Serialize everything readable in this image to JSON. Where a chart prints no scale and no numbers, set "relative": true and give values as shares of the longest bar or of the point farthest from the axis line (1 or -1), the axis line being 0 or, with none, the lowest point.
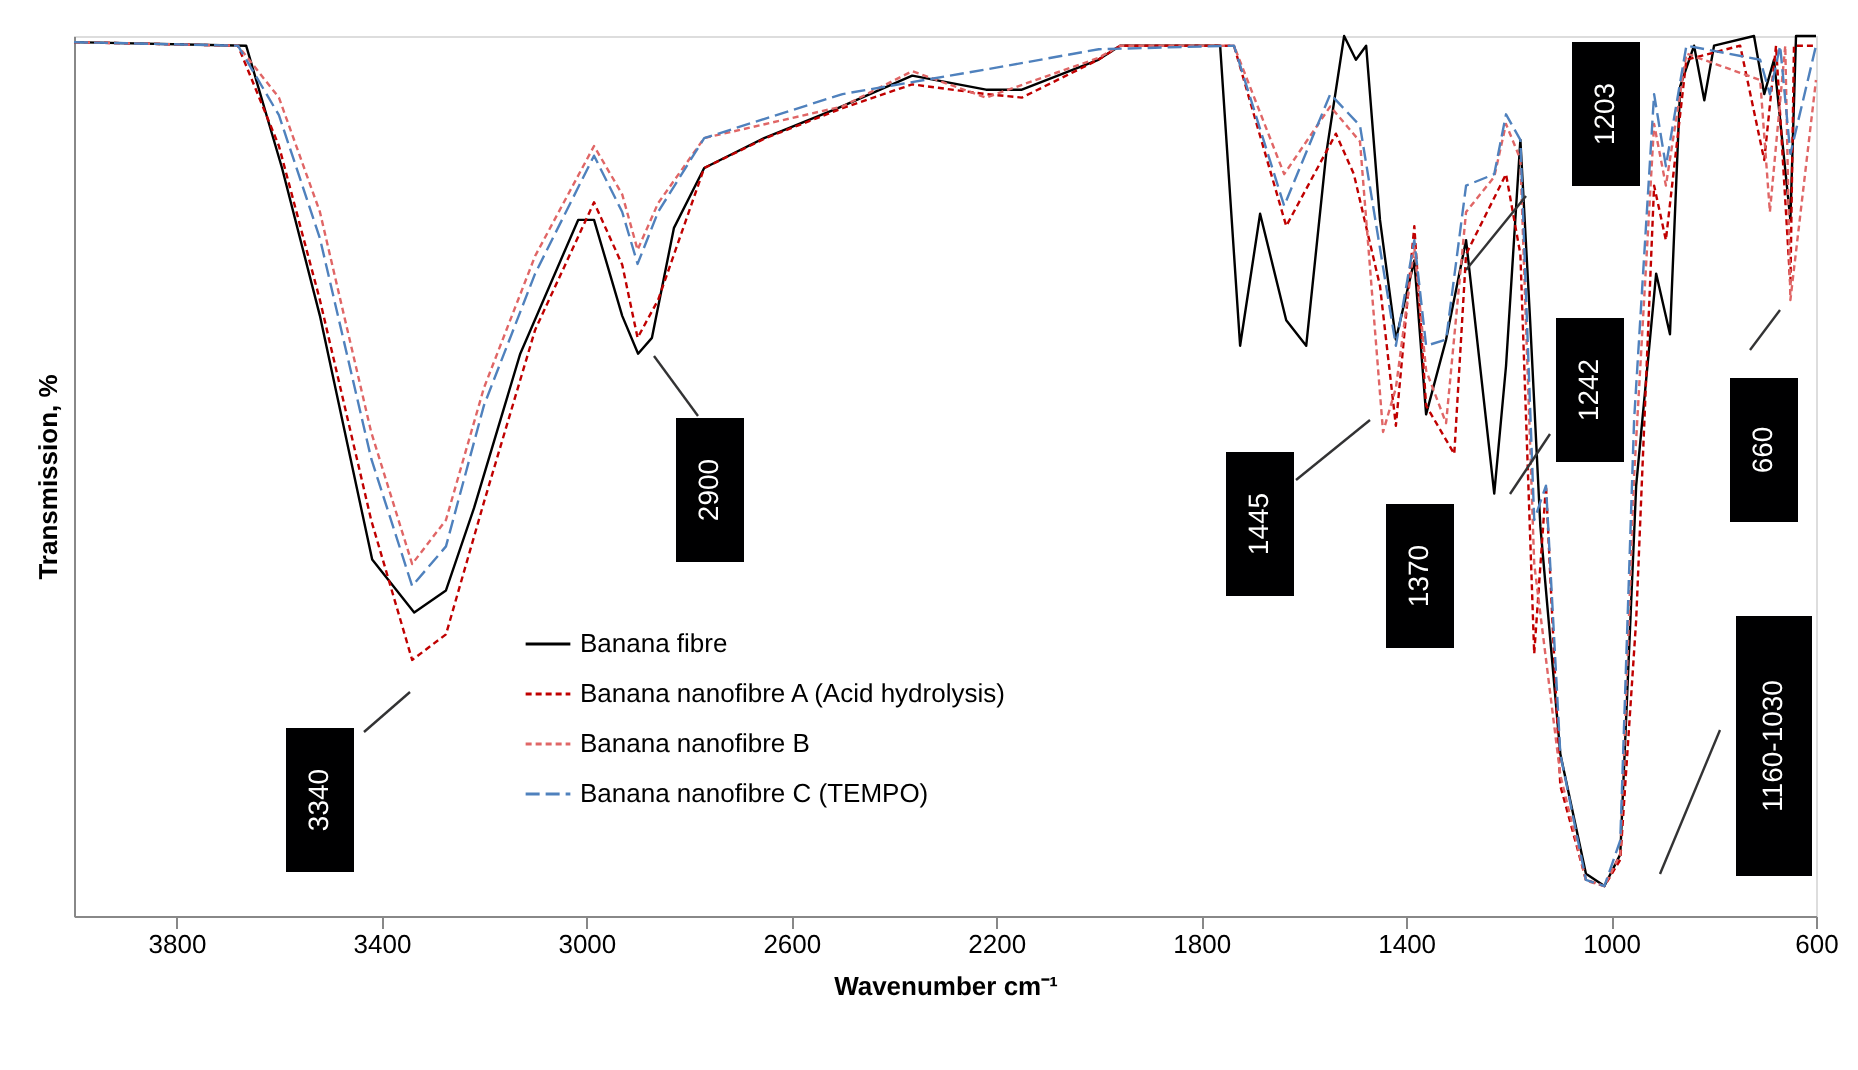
{
  "chart_data": {
    "type": "line",
    "relative": true,
    "xlabel": "Wavenumber cm⁻¹",
    "ylabel": "Transmission, %",
    "xlim": [
      4000,
      600
    ],
    "xticks": [
      3800,
      3400,
      3000,
      2600,
      2200,
      1800,
      1400,
      1000,
      600
    ],
    "legend": "bottom",
    "grid": false,
    "marker": "none",
    "series": [
      {
        "name": "Banana fibre",
        "color": "#000000",
        "line_style": "solid",
        "x": [
          4000,
          3664,
          3594,
          3520,
          3418,
          3336,
          3274,
          3219,
          3129,
          3016,
          2985,
          2930,
          2899,
          2872,
          2829,
          2770,
          2653,
          2509,
          2364,
          2220,
          2150,
          2001,
          1958,
          1771,
          1763,
          1724,
          1685,
          1634,
          1595,
          1556,
          1521,
          1498,
          1478,
          1451,
          1420,
          1384,
          1361,
          1322,
          1283,
          1228,
          1205,
          1177,
          1158,
          1138,
          1099,
          1049,
          1013,
          982,
          951,
          912,
          885,
          865,
          838,
          818,
          799,
          721,
          701,
          682,
          650,
          639,
          600
        ],
        "values": [
          0.993,
          0.989,
          0.85,
          0.682,
          0.405,
          0.345,
          0.37,
          0.464,
          0.639,
          0.791,
          0.791,
          0.682,
          0.639,
          0.657,
          0.782,
          0.85,
          0.884,
          0.918,
          0.955,
          0.939,
          0.939,
          0.973,
          0.989,
          0.989,
          0.989,
          0.648,
          0.798,
          0.677,
          0.648,
          0.866,
          1,
          0.973,
          0.989,
          0.791,
          0.655,
          0.745,
          0.57,
          0.655,
          0.768,
          0.48,
          0.625,
          0.882,
          0.677,
          0.443,
          0.184,
          0.048,
          0.034,
          0.07,
          0.489,
          0.73,
          0.661,
          0.943,
          0.989,
          0.927,
          0.989,
          1,
          0.934,
          0.973,
          0.791,
          1,
          1
        ]
      },
      {
        "name": "Banana nanofibre A (Acid hydrolysis)",
        "color": "#c00000",
        "line_style": "dotted",
        "x": [
          4000,
          3680,
          3600,
          3520,
          3420,
          3340,
          3274,
          3200,
          3100,
          2985,
          2930,
          2900,
          2860,
          2770,
          2650,
          2500,
          2364,
          2220,
          2150,
          2001,
          1958,
          1736,
          1634,
          1537,
          1502,
          1451,
          1420,
          1384,
          1361,
          1306,
          1283,
          1205,
          1177,
          1150,
          1127,
          1099,
          1049,
          1013,
          982,
          951,
          916,
          893,
          853,
          748,
          701,
          678,
          650,
          643,
          600
        ],
        "values": [
          0.993,
          0.989,
          0.875,
          0.7,
          0.45,
          0.291,
          0.32,
          0.47,
          0.666,
          0.811,
          0.74,
          0.657,
          0.7,
          0.85,
          0.884,
          0.918,
          0.945,
          0.934,
          0.93,
          0.973,
          0.989,
          0.989,
          0.784,
          0.889,
          0.843,
          0.716,
          0.557,
          0.784,
          0.58,
          0.525,
          0.752,
          0.843,
          0.752,
          0.298,
          0.489,
          0.148,
          0.041,
          0.034,
          0.064,
          0.336,
          0.83,
          0.768,
          0.973,
          0.989,
          0.859,
          0.989,
          0.716,
          0.989,
          0.989
        ]
      },
      {
        "name": "Banana nanofibre B",
        "color": "#e06666",
        "line_style": "dotted",
        "x": [
          4000,
          3680,
          3600,
          3520,
          3420,
          3340,
          3274,
          3200,
          3100,
          2985,
          2930,
          2900,
          2860,
          2770,
          2650,
          2500,
          2364,
          2220,
          2001,
          1958,
          1736,
          1638,
          1548,
          1490,
          1445,
          1420,
          1384,
          1361,
          1322,
          1283,
          1228,
          1205,
          1177,
          1150,
          1099,
          1049,
          1013,
          982,
          955,
          916,
          893,
          853,
          709,
          690,
          660,
          650,
          600
        ],
        "values": [
          0.993,
          0.989,
          0.93,
          0.8,
          0.55,
          0.4,
          0.45,
          0.6,
          0.75,
          0.875,
          0.82,
          0.757,
          0.81,
          0.884,
          0.9,
          0.92,
          0.96,
          0.93,
          0.975,
          0.989,
          0.989,
          0.843,
          0.92,
          0.88,
          0.55,
          0.6,
          0.76,
          0.62,
          0.56,
          0.8,
          0.84,
          0.9,
          0.86,
          0.4,
          0.16,
          0.04,
          0.034,
          0.07,
          0.5,
          0.9,
          0.83,
          0.98,
          0.95,
          0.8,
          0.989,
          0.7,
          0.95
        ]
      },
      {
        "name": "Banana nanofibre C (TEMPO)",
        "color": "#4f81bd",
        "line_style": "dashed",
        "x": [
          4000,
          3680,
          3600,
          3520,
          3420,
          3340,
          3274,
          3200,
          3100,
          2985,
          2930,
          2900,
          2860,
          2770,
          2500,
          2200,
          2000,
          1736,
          1638,
          1548,
          1490,
          1420,
          1384,
          1361,
          1322,
          1283,
          1228,
          1205,
          1177,
          1150,
          1127,
          1099,
          1049,
          1013,
          982,
          955,
          916,
          893,
          853,
          709,
          690,
          670,
          650,
          600
        ],
        "values": [
          0.993,
          0.989,
          0.91,
          0.77,
          0.52,
          0.375,
          0.42,
          0.58,
          0.73,
          0.864,
          0.8,
          0.741,
          0.8,
          0.884,
          0.934,
          0.964,
          0.985,
          0.989,
          0.807,
          0.934,
          0.898,
          0.648,
          0.768,
          0.648,
          0.655,
          0.83,
          0.843,
          0.911,
          0.882,
          0.45,
          0.489,
          0.184,
          0.041,
          0.034,
          0.086,
          0.564,
          0.934,
          0.852,
          0.989,
          0.973,
          0.934,
          0.989,
          0.866,
          0.989
        ]
      }
    ],
    "annotations": [
      "3340",
      "2900",
      "1445",
      "1370",
      "1203",
      "1242",
      "660",
      "1160-1030"
    ]
  }
}
